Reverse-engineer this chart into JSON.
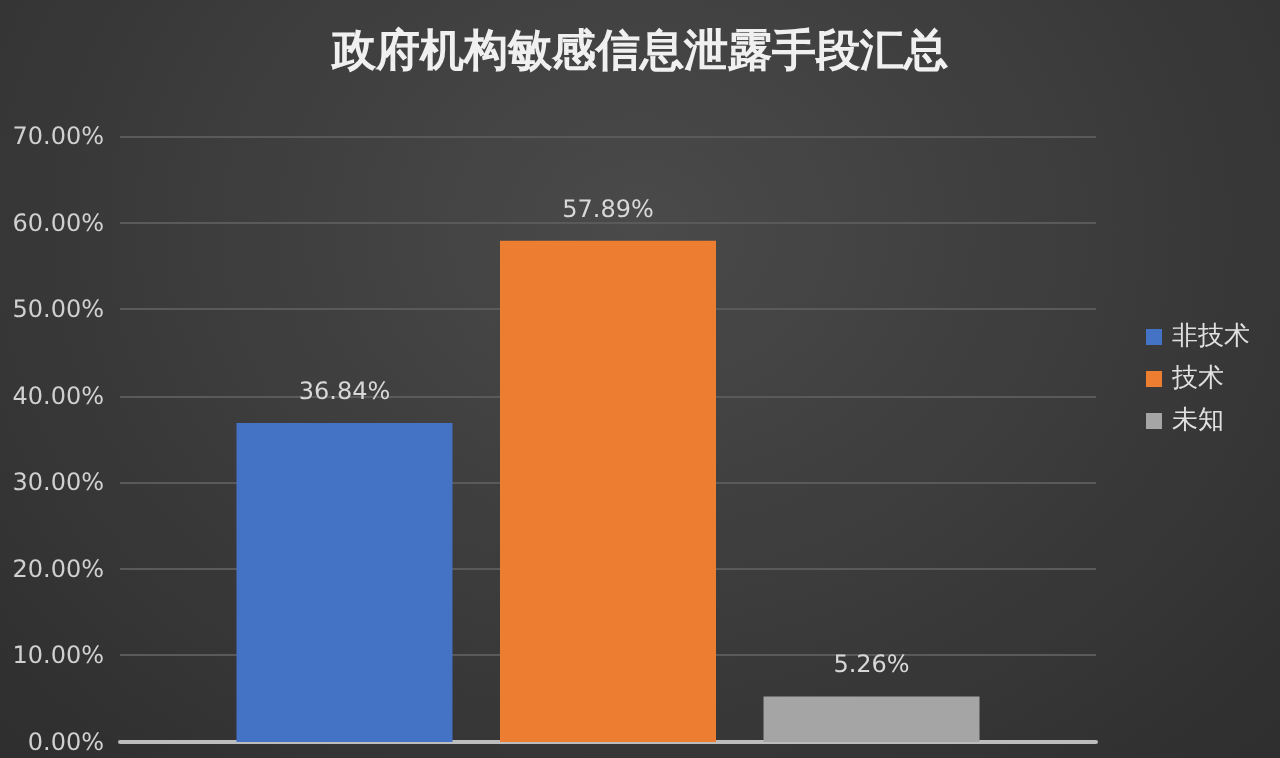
{
  "chart_data": {
    "type": "bar",
    "title": "政府机构敏感信息泄露手段汇总",
    "categories": [
      null
    ],
    "series": [
      {
        "name": "非技术",
        "color": "#4472c4",
        "values": [
          36.84
        ],
        "value_labels": [
          "36.84%"
        ]
      },
      {
        "name": "技术",
        "color": "#ed7d31",
        "values": [
          57.89
        ],
        "value_labels": [
          "57.89%"
        ]
      },
      {
        "name": "未知",
        "color": "#a5a5a5",
        "values": [
          5.26
        ],
        "value_labels": [
          "5.26%"
        ]
      }
    ],
    "ylim": [
      0,
      70
    ],
    "yticks": [
      {
        "value": 0,
        "label": "0.00%"
      },
      {
        "value": 10,
        "label": "10.00%"
      },
      {
        "value": 20,
        "label": "20.00%"
      },
      {
        "value": 30,
        "label": "30.00%"
      },
      {
        "value": 40,
        "label": "40.00%"
      },
      {
        "value": 50,
        "label": "50.00%"
      },
      {
        "value": 60,
        "label": "60.00%"
      },
      {
        "value": 70,
        "label": "70.00%"
      }
    ],
    "grid": "y",
    "legend": "right"
  }
}
